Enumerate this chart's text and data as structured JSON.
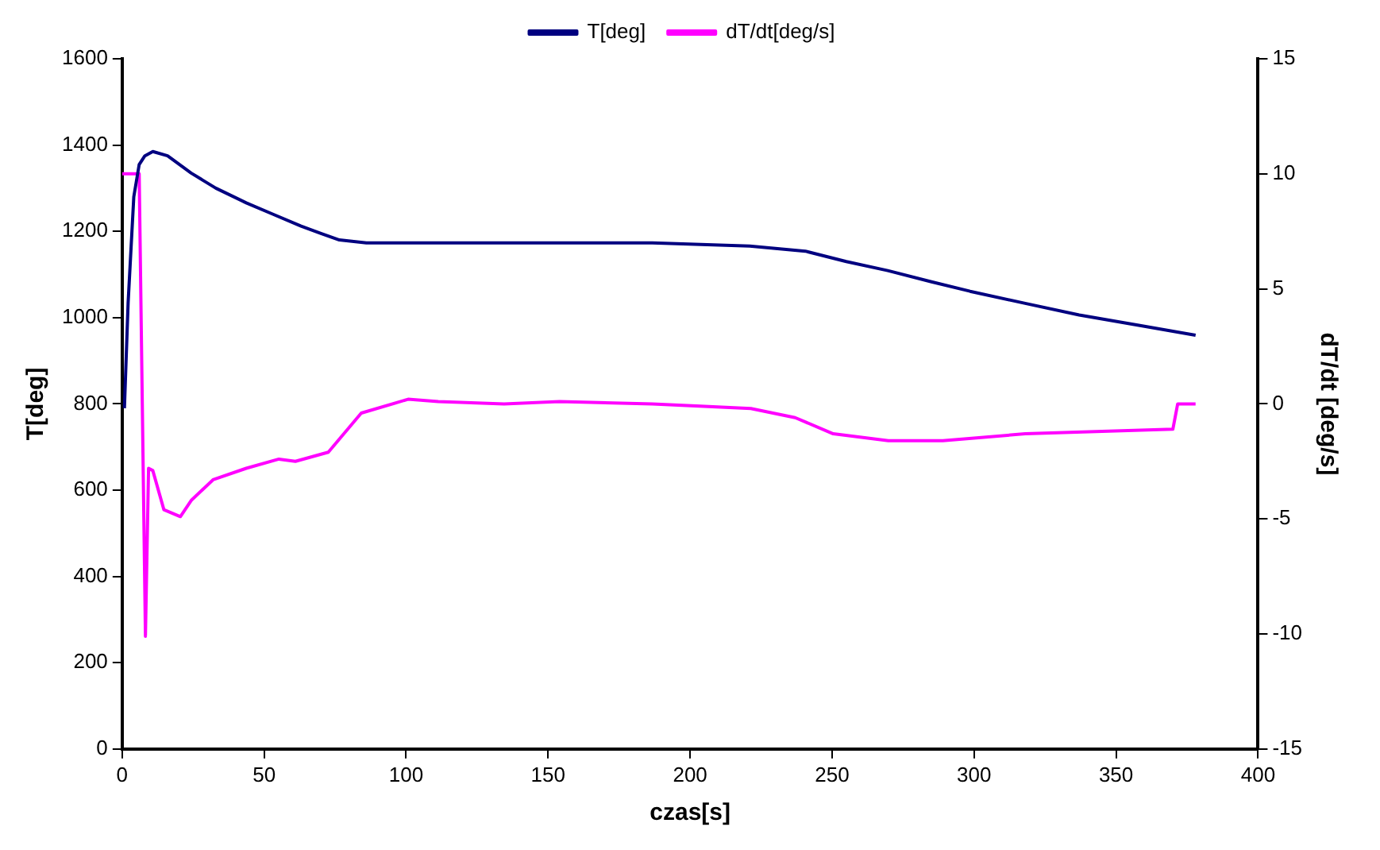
{
  "chart_data": {
    "type": "line",
    "xlabel": "czas[s]",
    "ylabel": "T[deg]",
    "y2label": "dT/dt [deg/s]",
    "xlim": [
      0,
      400
    ],
    "xticks": [
      0,
      50,
      100,
      150,
      200,
      250,
      300,
      350,
      400
    ],
    "ylim": [
      0,
      1600
    ],
    "yticks": [
      0,
      200,
      400,
      600,
      800,
      1000,
      1200,
      1400,
      1600
    ],
    "y2lim": [
      -15,
      15
    ],
    "y2ticks": [
      -15,
      -10,
      -5,
      0,
      5,
      10,
      15
    ],
    "grid": false,
    "legend": "top",
    "marker": "none",
    "line_style": "solid",
    "series": [
      {
        "name": "T[deg]",
        "color": "#000080",
        "x": [
          0.8,
          2.1,
          4.1,
          6,
          8,
          10.8,
          16,
          24.3,
          33,
          43.7,
          53,
          63,
          70,
          76.5,
          86,
          111,
          150,
          186.7,
          221,
          240.6,
          255,
          269.6,
          285,
          298.6,
          318,
          337,
          358,
          378
        ],
        "values": [
          790,
          1034,
          1280,
          1355,
          1375,
          1385,
          1375,
          1335,
          1300,
          1266,
          1240,
          1212,
          1195,
          1180,
          1173,
          1173,
          1173,
          1173,
          1166,
          1154,
          1130,
          1109,
          1083,
          1061,
          1033,
          1006,
          982,
          959
        ]
      },
      {
        "name": "dT/dt[deg/s]",
        "color": "#ff00ff",
        "axis": "y2",
        "x": [
          0,
          6,
          8.2,
          9.3,
          10.8,
          14.7,
          20.5,
          24.3,
          32,
          43.7,
          55.2,
          61,
          72.6,
          84.2,
          100.7,
          111.3,
          134.5,
          154,
          186.7,
          221.4,
          237,
          250.4,
          269.8,
          289,
          318,
          370,
          371.7,
          378
        ],
        "values": [
          10,
          10,
          -10.1,
          -2.8,
          -2.9,
          -4.6,
          -4.9,
          -4.2,
          -3.3,
          -2.8,
          -2.4,
          -2.5,
          -2.1,
          -0.4,
          0.2,
          0.1,
          0,
          0.1,
          0,
          -0.2,
          -0.6,
          -1.3,
          -1.6,
          -1.6,
          -1.3,
          -1.1,
          0,
          0
        ]
      }
    ]
  }
}
